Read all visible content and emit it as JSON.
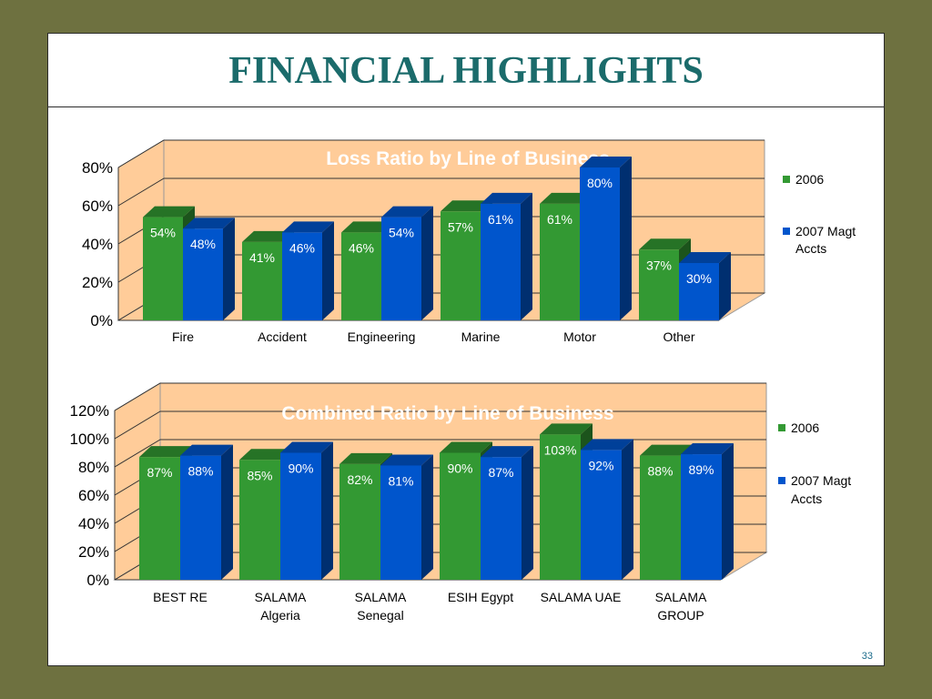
{
  "slide": {
    "title": "FINANCIAL HIGHLIGHTS",
    "page_number": "33"
  },
  "colors": {
    "series_2006": "#339933",
    "series_2007": "#0055cc",
    "plot_back": "#ffcc99",
    "title": "#1b6b6b",
    "frame": "#6e7140"
  },
  "chart_data": [
    {
      "type": "bar",
      "title": "Loss Ratio by Line of Business",
      "categories": [
        "Fire",
        "Accident",
        "Engineering",
        "Marine",
        "Motor",
        "Other"
      ],
      "series": [
        {
          "name": "2006",
          "values": [
            54,
            41,
            46,
            57,
            61,
            37
          ],
          "labels": [
            "54%",
            "41%",
            "46%",
            "57%",
            "61%",
            "37%"
          ]
        },
        {
          "name": "2007 Magt Accts",
          "values": [
            48,
            46,
            54,
            61,
            80,
            30
          ],
          "labels": [
            "48%",
            "46%",
            "54%",
            "61%",
            "80%",
            "30%"
          ]
        }
      ],
      "ylim": [
        0,
        80
      ],
      "yticks": [
        "0%",
        "20%",
        "40%",
        "60%",
        "80%"
      ],
      "legend_position": "right",
      "grid": true
    },
    {
      "type": "bar",
      "title": "Combined Ratio by Line of Business",
      "categories": [
        [
          "BEST RE"
        ],
        [
          "SALAMA",
          "Algeria"
        ],
        [
          "SALAMA",
          "Senegal"
        ],
        [
          "ESIH Egypt"
        ],
        [
          "SALAMA UAE"
        ],
        [
          "SALAMA",
          "GROUP"
        ]
      ],
      "series": [
        {
          "name": "2006",
          "values": [
            87,
            85,
            82,
            90,
            103,
            88
          ],
          "labels": [
            "87%",
            "85%",
            "82%",
            "90%",
            "103%",
            "88%"
          ]
        },
        {
          "name": "2007 Magt Accts",
          "values": [
            88,
            90,
            81,
            87,
            92,
            89
          ],
          "labels": [
            "88%",
            "90%",
            "81%",
            "87%",
            "92%",
            "89%"
          ]
        }
      ],
      "ylim": [
        0,
        120
      ],
      "yticks": [
        "0%",
        "20%",
        "40%",
        "60%",
        "80%",
        "100%",
        "120%"
      ],
      "legend_position": "right",
      "grid": true
    }
  ]
}
